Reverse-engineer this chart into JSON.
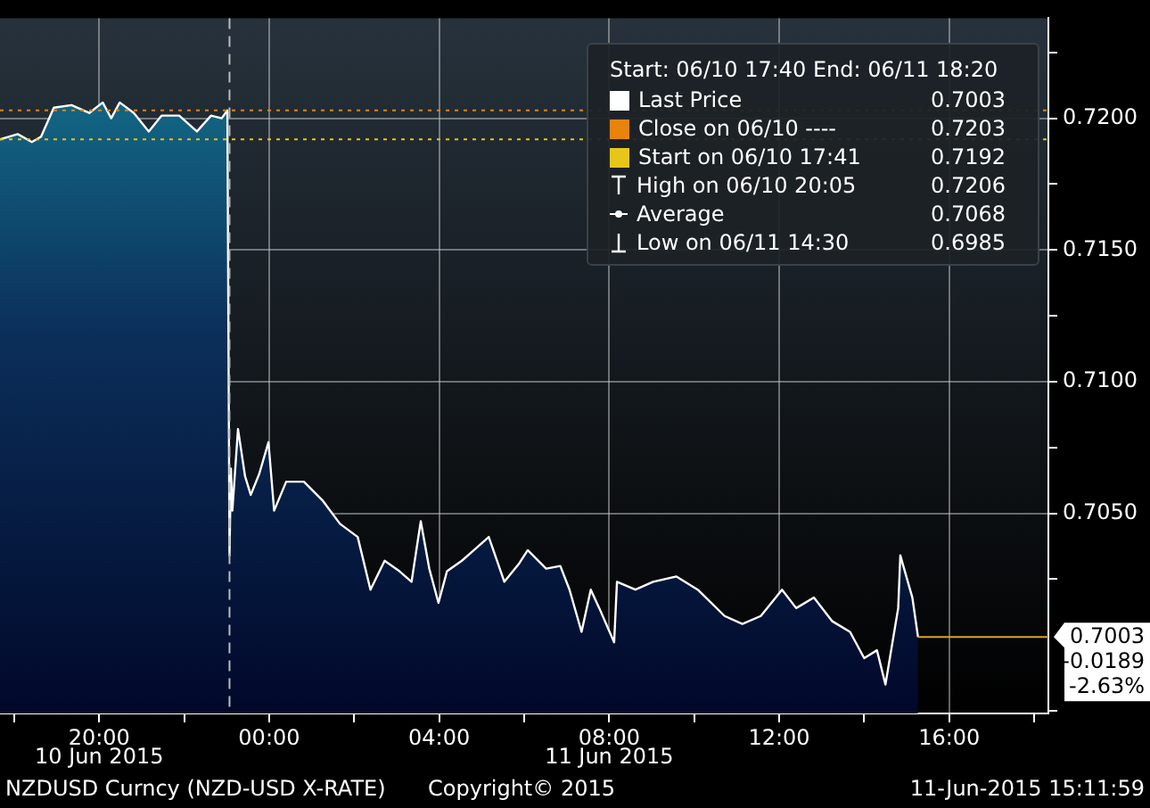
{
  "chart_data": {
    "type": "area",
    "legend_title": "Start: 06/10 17:40 End: 06/11 18:20",
    "legend": "top right",
    "grid": true,
    "x": [
      "2015-06-10T17:40",
      "2015-06-10T18:05",
      "2015-06-10T18:25",
      "2015-06-10T18:38",
      "2015-06-10T18:56",
      "2015-06-10T19:21",
      "2015-06-10T19:46",
      "2015-06-10T20:05",
      "2015-06-10T20:17",
      "2015-06-10T20:29",
      "2015-06-10T20:49",
      "2015-06-10T21:10",
      "2015-06-10T21:28",
      "2015-06-10T21:53",
      "2015-06-10T22:18",
      "2015-06-10T22:38",
      "2015-06-10T22:53",
      "2015-06-10T23:01",
      "2015-06-10T23:04",
      "2015-06-10T23:06",
      "2015-06-10T23:08",
      "2015-06-10T23:16",
      "2015-06-10T23:26",
      "2015-06-10T23:34",
      "2015-06-10T23:46",
      "2015-06-10T23:59",
      "2015-06-11T00:07",
      "2015-06-11T00:24",
      "2015-06-11T00:49",
      "2015-06-11T01:15",
      "2015-06-11T01:40",
      "2015-06-11T02:05",
      "2015-06-11T02:23",
      "2015-06-11T02:43",
      "2015-06-11T03:04",
      "2015-06-11T03:21",
      "2015-06-11T03:34",
      "2015-06-11T03:46",
      "2015-06-11T03:59",
      "2015-06-11T04:11",
      "2015-06-11T04:32",
      "2015-06-11T04:49",
      "2015-06-11T05:10",
      "2015-06-11T05:32",
      "2015-06-11T05:53",
      "2015-06-11T06:05",
      "2015-06-11T06:31",
      "2015-06-11T06:51",
      "2015-06-11T07:04",
      "2015-06-11T07:21",
      "2015-06-11T07:34",
      "2015-06-11T07:46",
      "2015-06-11T08:07",
      "2015-06-11T08:11",
      "2015-06-11T08:37",
      "2015-06-11T09:02",
      "2015-06-11T09:35",
      "2015-06-11T10:05",
      "2015-06-11T10:43",
      "2015-06-11T11:08",
      "2015-06-11T11:34",
      "2015-06-11T12:04",
      "2015-06-11T12:24",
      "2015-06-11T12:49",
      "2015-06-11T13:15",
      "2015-06-11T13:40",
      "2015-06-11T14:00",
      "2015-06-11T14:18",
      "2015-06-11T14:30",
      "2015-06-11T14:48",
      "2015-06-11T14:51",
      "2015-06-11T15:08",
      "2015-06-11T15:16"
    ],
    "series": [
      {
        "name": "Last Price",
        "color": "#ffffff",
        "values": [
          0.7192,
          0.7194,
          0.7191,
          0.7193,
          0.7204,
          0.7205,
          0.7202,
          0.7206,
          0.72,
          0.7206,
          0.7202,
          0.7195,
          0.7201,
          0.7201,
          0.7195,
          0.7201,
          0.72,
          0.7203,
          0.7034,
          0.7067,
          0.7051,
          0.7082,
          0.7064,
          0.7057,
          0.7065,
          0.7077,
          0.7051,
          0.7062,
          0.7062,
          0.7055,
          0.7046,
          0.7041,
          0.7021,
          0.7032,
          0.7028,
          0.7024,
          0.7047,
          0.7029,
          0.7016,
          0.7028,
          0.7032,
          0.7036,
          0.7041,
          0.7024,
          0.7031,
          0.7036,
          0.7029,
          0.703,
          0.7021,
          0.7005,
          0.7021,
          0.7014,
          0.7001,
          0.7024,
          0.7021,
          0.7024,
          0.7026,
          0.7021,
          0.7011,
          0.7008,
          0.7011,
          0.7021,
          0.7014,
          0.7018,
          0.7009,
          0.7005,
          0.6995,
          0.6998,
          0.6985,
          0.7014,
          0.7034,
          0.7018,
          0.7003
        ]
      }
    ],
    "xlim": [
      "2015-06-10T17:40",
      "2015-06-11T18:20"
    ],
    "xticks": [
      {
        "value": "2015-06-10T18:00",
        "label": null
      },
      {
        "value": "2015-06-10T20:00",
        "label": "20:00"
      },
      {
        "value": "2015-06-10T22:00",
        "label": null
      },
      {
        "value": "2015-06-11T00:00",
        "label": "00:00"
      },
      {
        "value": "2015-06-11T02:00",
        "label": null
      },
      {
        "value": "2015-06-11T04:00",
        "label": "04:00"
      },
      {
        "value": "2015-06-11T06:00",
        "label": null
      },
      {
        "value": "2015-06-11T08:00",
        "label": "08:00"
      },
      {
        "value": "2015-06-11T10:00",
        "label": null
      },
      {
        "value": "2015-06-11T12:00",
        "label": "12:00"
      },
      {
        "value": "2015-06-11T14:00",
        "label": null
      },
      {
        "value": "2015-06-11T16:00",
        "label": "16:00"
      },
      {
        "value": "2015-06-11T18:00",
        "label": null
      }
    ],
    "ylim": [
      0.6974,
      0.7238
    ],
    "yticks": [
      {
        "value": 0.6975,
        "label": null
      },
      {
        "value": 0.7025,
        "label": null
      },
      {
        "value": 0.705,
        "label": "0.7050"
      },
      {
        "value": 0.7075,
        "label": null
      },
      {
        "value": 0.71,
        "label": "0.7100"
      },
      {
        "value": 0.7125,
        "label": null
      },
      {
        "value": 0.715,
        "label": "0.7150"
      },
      {
        "value": 0.7175,
        "label": null
      },
      {
        "value": 0.72,
        "label": "0.7200"
      },
      {
        "value": 0.7225,
        "label": null
      }
    ],
    "ref_lines": [
      {
        "axis": "y",
        "value": 0.7203,
        "color": "#e8830c",
        "line_style": "dotted"
      },
      {
        "axis": "y",
        "value": 0.7192,
        "color": "#e6c619",
        "line_style": "dotted"
      },
      {
        "axis": "x",
        "value": "2015-06-10T23:04",
        "color": "#bbbbbb",
        "line_style": "dashed"
      },
      {
        "axis": "y",
        "value": 0.7003,
        "label": "0.7003",
        "color": "#d9a521",
        "line_style": "solid"
      }
    ],
    "annotations": [
      "0.7003",
      "Close on 06/10 ----",
      "0.7203",
      "Start on 06/10 17:41",
      "0.7192",
      "High on 06/10 20:05",
      "0.7206",
      "Average",
      "0.7068",
      "Low on 06/11 14:30",
      "0.6985",
      "-0.0189",
      "-2.63%",
      "10 Jun 2015",
      "11 Jun 2015",
      "NZDUSD Curncy (NZD-USD X-RATE)",
      "Copyright© 2015",
      "11-Jun-2015 15:11:59"
    ]
  }
}
